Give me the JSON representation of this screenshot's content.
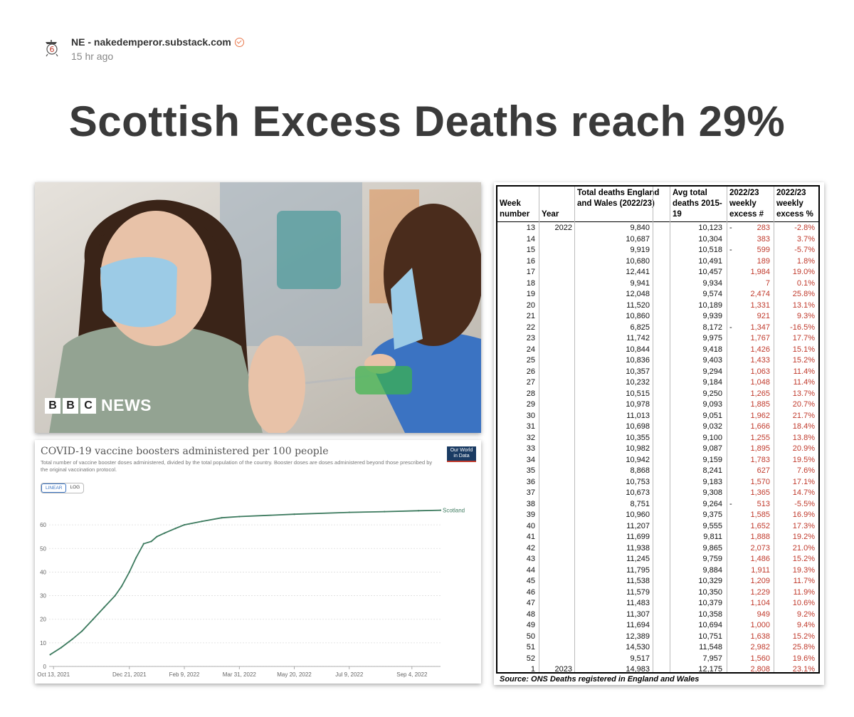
{
  "header": {
    "author": "NE - nakedemperor.substack.com",
    "time": "15 hr ago",
    "avatar_icon": "emperor-avatar-icon",
    "avatar_text": "6"
  },
  "title": "Scottish Excess Deaths reach 29%",
  "photo": {
    "brand_letters": [
      "B",
      "B",
      "C"
    ],
    "brand_word": "NEWS"
  },
  "chart_data": {
    "type": "line",
    "title": "COVID-19 vaccine boosters administered per 100 people",
    "subtitle": "Total number of vaccine booster doses administered, divided by the total population of the country. Booster doses are doses administered beyond those prescribed by the original vaccination protocol.",
    "badge_line1": "Our World",
    "badge_line2": "in Data",
    "toggle": [
      "LINEAR",
      "LOG"
    ],
    "series": [
      {
        "name": "Scotland",
        "color": "#3c7a5e",
        "points": [
          [
            "2021-10-10",
            5
          ],
          [
            "2021-10-20",
            8
          ],
          [
            "2021-10-30",
            11.5
          ],
          [
            "2021-11-08",
            15
          ],
          [
            "2021-11-18",
            20
          ],
          [
            "2021-11-28",
            25
          ],
          [
            "2021-12-08",
            30
          ],
          [
            "2021-12-14",
            34
          ],
          [
            "2021-12-21",
            40
          ],
          [
            "2021-12-27",
            46
          ],
          [
            "2022-01-03",
            52
          ],
          [
            "2022-01-10",
            53
          ],
          [
            "2022-01-15",
            55
          ],
          [
            "2022-01-22",
            56.5
          ],
          [
            "2022-02-01",
            58.5
          ],
          [
            "2022-02-09",
            60
          ],
          [
            "2022-02-25",
            61.5
          ],
          [
            "2022-03-15",
            63
          ],
          [
            "2022-03-31",
            63.5
          ],
          [
            "2022-05-20",
            64.5
          ],
          [
            "2022-07-09",
            65.3
          ],
          [
            "2022-08-10",
            65.6
          ],
          [
            "2022-09-10",
            66
          ],
          [
            "2022-09-30",
            66.2
          ]
        ]
      }
    ],
    "x_ticks": [
      "Oct 13, 2021",
      "Dec 21, 2021",
      "Feb 9, 2022",
      "Mar 31, 2022",
      "May 20, 2022",
      "Jul 9, 2022",
      "Sep 4, 2022"
    ],
    "x_tick_dates": [
      "2021-10-13",
      "2021-12-21",
      "2022-02-09",
      "2022-03-31",
      "2022-05-20",
      "2022-07-09",
      "2022-09-04"
    ],
    "xlim": [
      "2021-10-09",
      "2022-09-30"
    ],
    "y_ticks": [
      0,
      10,
      20,
      30,
      40,
      50,
      60
    ],
    "ylim": [
      0,
      70
    ],
    "grid": true
  },
  "table": {
    "headers": {
      "week": "Week number",
      "year": "Year",
      "total": "Total deaths England and Wales (2022/23)",
      "avg": "Avg total deaths 2015-19",
      "excess": "2022/23 weekly excess #",
      "pct": "2022/23 weekly excess %"
    },
    "rows": [
      [
        "13",
        "2022",
        "9,840",
        "10,123",
        "-",
        "283",
        "-2.8%"
      ],
      [
        "14",
        "",
        "10,687",
        "10,304",
        "",
        "383",
        "3.7%"
      ],
      [
        "15",
        "",
        "9,919",
        "10,518",
        "-",
        "599",
        "-5.7%"
      ],
      [
        "16",
        "",
        "10,680",
        "10,491",
        "",
        "189",
        "1.8%"
      ],
      [
        "17",
        "",
        "12,441",
        "10,457",
        "",
        "1,984",
        "19.0%"
      ],
      [
        "18",
        "",
        "9,941",
        "9,934",
        "",
        "7",
        "0.1%"
      ],
      [
        "19",
        "",
        "12,048",
        "9,574",
        "",
        "2,474",
        "25.8%"
      ],
      [
        "20",
        "",
        "11,520",
        "10,189",
        "",
        "1,331",
        "13.1%"
      ],
      [
        "21",
        "",
        "10,860",
        "9,939",
        "",
        "921",
        "9.3%"
      ],
      [
        "22",
        "",
        "6,825",
        "8,172",
        "-",
        "1,347",
        "-16.5%"
      ],
      [
        "23",
        "",
        "11,742",
        "9,975",
        "",
        "1,767",
        "17.7%"
      ],
      [
        "24",
        "",
        "10,844",
        "9,418",
        "",
        "1,426",
        "15.1%"
      ],
      [
        "25",
        "",
        "10,836",
        "9,403",
        "",
        "1,433",
        "15.2%"
      ],
      [
        "26",
        "",
        "10,357",
        "9,294",
        "",
        "1,063",
        "11.4%"
      ],
      [
        "27",
        "",
        "10,232",
        "9,184",
        "",
        "1,048",
        "11.4%"
      ],
      [
        "28",
        "",
        "10,515",
        "9,250",
        "",
        "1,265",
        "13.7%"
      ],
      [
        "29",
        "",
        "10,978",
        "9,093",
        "",
        "1,885",
        "20.7%"
      ],
      [
        "30",
        "",
        "11,013",
        "9,051",
        "",
        "1,962",
        "21.7%"
      ],
      [
        "31",
        "",
        "10,698",
        "9,032",
        "",
        "1,666",
        "18.4%"
      ],
      [
        "32",
        "",
        "10,355",
        "9,100",
        "",
        "1,255",
        "13.8%"
      ],
      [
        "33",
        "",
        "10,982",
        "9,087",
        "",
        "1,895",
        "20.9%"
      ],
      [
        "34",
        "",
        "10,942",
        "9,159",
        "",
        "1,783",
        "19.5%"
      ],
      [
        "35",
        "",
        "8,868",
        "8,241",
        "",
        "627",
        "7.6%"
      ],
      [
        "36",
        "",
        "10,753",
        "9,183",
        "",
        "1,570",
        "17.1%"
      ],
      [
        "37",
        "",
        "10,673",
        "9,308",
        "",
        "1,365",
        "14.7%"
      ],
      [
        "38",
        "",
        "8,751",
        "9,264",
        "-",
        "513",
        "-5.5%"
      ],
      [
        "39",
        "",
        "10,960",
        "9,375",
        "",
        "1,585",
        "16.9%"
      ],
      [
        "40",
        "",
        "11,207",
        "9,555",
        "",
        "1,652",
        "17.3%"
      ],
      [
        "41",
        "",
        "11,699",
        "9,811",
        "",
        "1,888",
        "19.2%"
      ],
      [
        "42",
        "",
        "11,938",
        "9,865",
        "",
        "2,073",
        "21.0%"
      ],
      [
        "43",
        "",
        "11,245",
        "9,759",
        "",
        "1,486",
        "15.2%"
      ],
      [
        "44",
        "",
        "11,795",
        "9,884",
        "",
        "1,911",
        "19.3%"
      ],
      [
        "45",
        "",
        "11,538",
        "10,329",
        "",
        "1,209",
        "11.7%"
      ],
      [
        "46",
        "",
        "11,579",
        "10,350",
        "",
        "1,229",
        "11.9%"
      ],
      [
        "47",
        "",
        "11,483",
        "10,379",
        "",
        "1,104",
        "10.6%"
      ],
      [
        "48",
        "",
        "11,307",
        "10,358",
        "",
        "949",
        "9.2%"
      ],
      [
        "49",
        "",
        "11,694",
        "10,694",
        "",
        "1,000",
        "9.4%"
      ],
      [
        "50",
        "",
        "12,389",
        "10,751",
        "",
        "1,638",
        "15.2%"
      ],
      [
        "51",
        "",
        "14,530",
        "11,548",
        "",
        "2,982",
        "25.8%"
      ],
      [
        "52",
        "",
        "9,517",
        "7,957",
        "",
        "1,560",
        "19.6%"
      ],
      [
        "1",
        "2023",
        "14,983",
        "12,175",
        "",
        "2,808",
        "23.1%"
      ]
    ],
    "source": "Source: ONS Deaths registered in England and Wales",
    "excess_color": "#c0392b"
  }
}
